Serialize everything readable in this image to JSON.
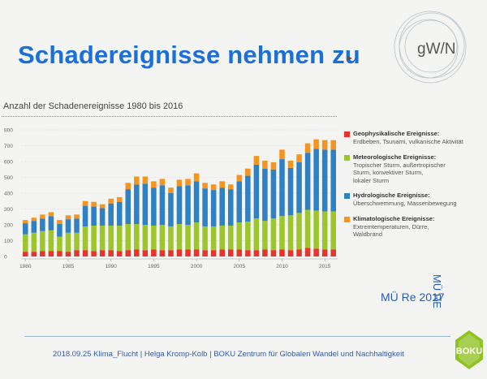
{
  "slide": {
    "title": "Schadereignisse nehmen zu",
    "cursor": "▸",
    "logo_text": "gW/N",
    "source": "MÜ Re 2017",
    "side_label": "MÜ RE",
    "footer": "2018.09.25 Klima_Flucht   |   Helga Kromp-Kolb   |   BOKU Zentrum für Globalen Wandel und Nachhaltigkeit",
    "boku_label": "BOKU"
  },
  "colors": {
    "title": "#1a6fd8",
    "geophysical": "#e8342d",
    "meteorological": "#9cc62b",
    "hydrological": "#2f81c4",
    "climatological": "#f7941d"
  },
  "legend": [
    {
      "title": "Geophysikalische Ereignisse:",
      "desc": [
        "Erdbeben, Tsunami, vulkanische Aktivität"
      ],
      "color": "#e8342d"
    },
    {
      "title": "Meteorologische Ereignisse:",
      "desc": [
        "Tropischer Sturm, außertropischer",
        "Sturm, konvektiver Sturm,",
        "lokaler Sturm"
      ],
      "color": "#9cc62b"
    },
    {
      "title": "Hydrologische Ereignisse:",
      "desc": [
        "Überschwemmung, Massenbewegung"
      ],
      "color": "#2f81c4"
    },
    {
      "title": "Klimatologische Ereignisse:",
      "desc": [
        "Extremtemperaturen, Dürre,",
        "Waldbrand"
      ],
      "color": "#f7941d"
    }
  ],
  "chart_data": {
    "type": "bar",
    "stacked": true,
    "title": "Anzahl der Schadenereignisse 1980 bis 2016",
    "xlabel": "",
    "ylabel": "",
    "ylim": [
      0,
      800
    ],
    "yticks": [
      0,
      100,
      200,
      300,
      400,
      500,
      600,
      700,
      800
    ],
    "xtick_labels": [
      "1980",
      "1985",
      "1990",
      "1995",
      "2000",
      "2005",
      "2010",
      "2015"
    ],
    "grid": true,
    "legend_position": "right",
    "categories": [
      "1980",
      "1981",
      "1982",
      "1983",
      "1984",
      "1985",
      "1986",
      "1987",
      "1988",
      "1989",
      "1990",
      "1991",
      "1992",
      "1993",
      "1994",
      "1995",
      "1996",
      "1997",
      "1998",
      "1999",
      "2000",
      "2001",
      "2002",
      "2003",
      "2004",
      "2005",
      "2006",
      "2007",
      "2008",
      "2009",
      "2010",
      "2011",
      "2012",
      "2013",
      "2014",
      "2015",
      "2016"
    ],
    "series": [
      {
        "name": "Geophysikalische Ereignisse",
        "color": "#e8342d",
        "values": [
          30,
          30,
          35,
          35,
          35,
          30,
          40,
          40,
          35,
          40,
          40,
          35,
          40,
          45,
          40,
          45,
          40,
          40,
          45,
          45,
          45,
          40,
          40,
          45,
          45,
          45,
          40,
          40,
          45,
          40,
          45,
          40,
          45,
          55,
          50,
          45,
          45
        ]
      },
      {
        "name": "Meteorologische Ereignisse",
        "color": "#9cc62b",
        "values": [
          110,
          120,
          125,
          130,
          90,
          120,
          110,
          150,
          160,
          155,
          155,
          160,
          165,
          160,
          160,
          150,
          160,
          150,
          160,
          155,
          170,
          150,
          150,
          150,
          150,
          170,
          180,
          200,
          180,
          200,
          210,
          220,
          230,
          240,
          240,
          240,
          240
        ]
      },
      {
        "name": "Hydrologische Ereignisse",
        "color": "#2f81c4",
        "values": [
          70,
          75,
          80,
          90,
          80,
          85,
          90,
          130,
          120,
          110,
          140,
          150,
          220,
          250,
          260,
          240,
          250,
          210,
          240,
          250,
          260,
          240,
          230,
          240,
          230,
          260,
          290,
          340,
          330,
          310,
          360,
          300,
          320,
          360,
          390,
          390,
          390
        ]
      },
      {
        "name": "Klimatologische Ereignisse",
        "color": "#f7941d",
        "values": [
          20,
          20,
          25,
          25,
          25,
          25,
          25,
          30,
          30,
          25,
          30,
          30,
          40,
          50,
          45,
          40,
          40,
          35,
          40,
          40,
          50,
          35,
          35,
          40,
          30,
          40,
          45,
          55,
          50,
          45,
          60,
          45,
          50,
          60,
          60,
          60,
          60
        ]
      }
    ]
  }
}
